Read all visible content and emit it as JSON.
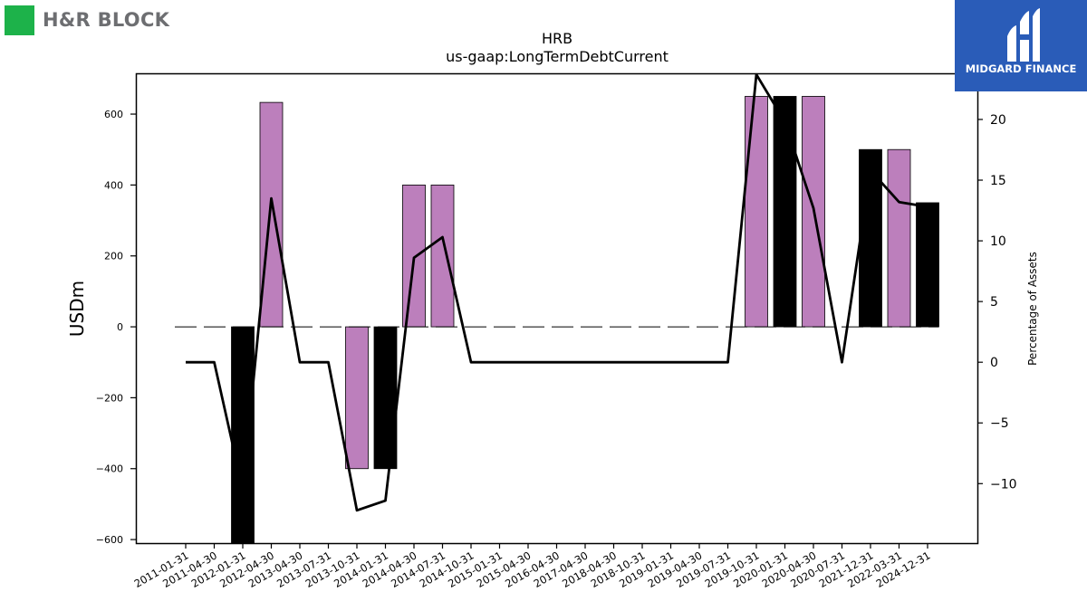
{
  "logos": {
    "left_text": "H&R BLOCK",
    "right_text": "MIDGARD FINANCE",
    "left_color": "#1db24a",
    "right_bg": "#2a5cb8"
  },
  "chart_data": {
    "type": "bar",
    "title": "HRB",
    "subtitle": "us-gaap:LongTermDebtCurrent",
    "ylabel": "USDm",
    "ylabel_right": "Percentage of Assets",
    "ylim": [
      -610,
      715
    ],
    "ylim_right": [
      -14.9,
      23.8
    ],
    "yticks": [
      -600,
      -400,
      -200,
      0,
      200,
      400,
      600
    ],
    "yticks_right": [
      -10,
      -5,
      0,
      5,
      10,
      15,
      20
    ],
    "categories": [
      "2011-01-31",
      "2011-04-30",
      "2012-01-31",
      "2012-04-30",
      "2013-04-30",
      "2013-07-31",
      "2013-10-31",
      "2014-01-31",
      "2014-04-30",
      "2014-07-31",
      "2014-10-31",
      "2015-01-31",
      "2015-04-30",
      "2016-04-30",
      "2017-04-30",
      "2018-04-30",
      "2018-10-31",
      "2019-01-31",
      "2019-04-30",
      "2019-07-31",
      "2019-10-31",
      "2020-01-31",
      "2020-04-30",
      "2020-07-31",
      "2021-12-31",
      "2022-03-31",
      "2024-12-31"
    ],
    "values": [
      0,
      0,
      -610,
      633,
      0,
      0,
      -400,
      -400,
      400,
      400,
      0,
      0,
      0,
      0,
      0,
      0,
      0,
      0,
      0,
      0,
      650,
      650,
      650,
      0,
      500,
      500,
      350
    ],
    "bar_colors": [
      "#000000",
      "#000000",
      "#000000",
      "#bc7fbc",
      "#000000",
      "#000000",
      "#bc7fbc",
      "#000000",
      "#bc7fbc",
      "#bc7fbc",
      "#000000",
      "#000000",
      "#000000",
      "#000000",
      "#000000",
      "#000000",
      "#000000",
      "#000000",
      "#000000",
      "#000000",
      "#bc7fbc",
      "#000000",
      "#bc7fbc",
      "#000000",
      "#000000",
      "#bc7fbc",
      "#000000"
    ],
    "series": [
      {
        "values": [
          0,
          0,
          -10.5,
          13.5,
          0,
          0,
          -12.2,
          -11.4,
          8.6,
          10.3,
          0,
          0,
          0,
          0,
          0,
          0,
          0,
          0,
          0,
          0,
          23.7,
          19.8,
          12.7,
          0,
          15.8,
          13.2,
          12.8
        ]
      }
    ],
    "grid": false,
    "zero_line": "dashed"
  }
}
